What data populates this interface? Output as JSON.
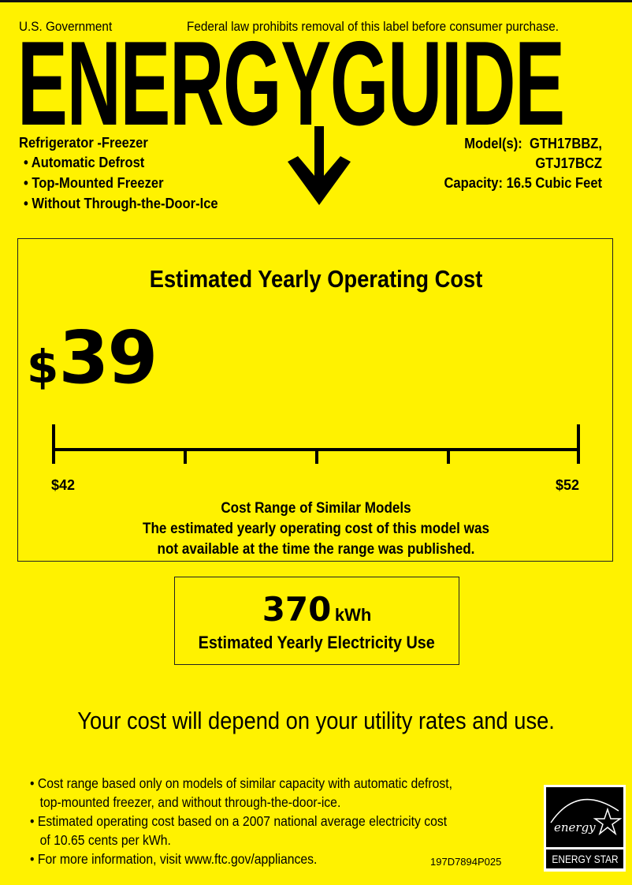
{
  "header": {
    "left": "U.S. Government",
    "right": "Federal law prohibits removal of this label before consumer purchase.",
    "logo": "ENERGYGUIDE"
  },
  "product": {
    "type": "Refrigerator -Freezer",
    "features": [
      "Automatic Defrost",
      "Top-Mounted Freezer",
      "Without Through-the-Door-Ice"
    ],
    "models_label": "Model(s):",
    "models": [
      "GTH17BBZ,",
      "GTJ17BCZ"
    ],
    "capacity": "Capacity: 16.5 Cubic Feet"
  },
  "cost": {
    "title": "Estimated Yearly Operating Cost",
    "currency": "$",
    "value": "39",
    "range_min": "$42",
    "range_max": "$52",
    "range_label": "Cost Range of Similar Models",
    "note_line1": "The estimated yearly operating cost of this model was",
    "note_line2": "not available at the time the range was published."
  },
  "electricity": {
    "value": "370",
    "unit": "kWh",
    "label": "Estimated Yearly Electricity Use"
  },
  "disclaimer": "Your cost will depend on your utility rates and use.",
  "footnotes": [
    [
      "Cost range based only on models of similar capacity with automatic defrost,",
      "top-mounted freezer, and without through-the-door-ice."
    ],
    [
      "Estimated operating cost based on a 2007 national average electricity cost",
      "of 10.65 cents per kWh."
    ],
    [
      "For more information, visit www.ftc.gov/appliances."
    ]
  ],
  "label_code": "197D7894P025",
  "energy_star": {
    "script": "energy",
    "label": "ENERGY STAR"
  },
  "colors": {
    "background": "#fff200",
    "ink": "#000000"
  }
}
